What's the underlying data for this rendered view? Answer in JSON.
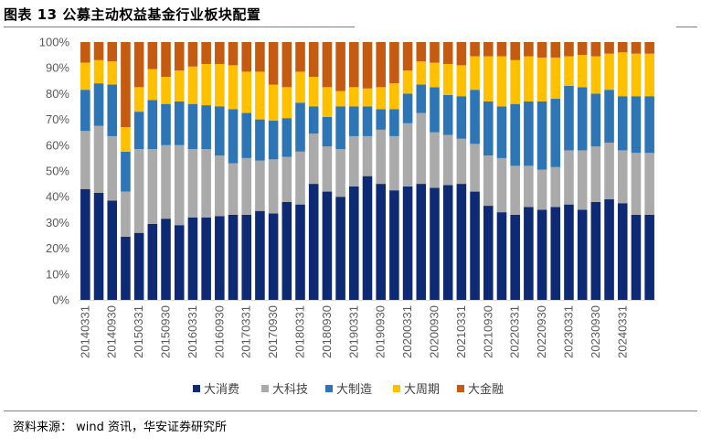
{
  "title": "图表 13 公募主动权益基金行业板块配置",
  "source": "资料来源： wind 资讯，华安证券研究所",
  "chart_data": {
    "type": "bar",
    "stacked": true,
    "title": "",
    "ylim": [
      0,
      100
    ],
    "yticks": [
      "0%",
      "10%",
      "20%",
      "30%",
      "40%",
      "50%",
      "60%",
      "70%",
      "80%",
      "90%",
      "100%"
    ],
    "legend_position": "bottom",
    "categories": [
      "20140331",
      "20140630",
      "20140930",
      "20141231",
      "20150331",
      "20150630",
      "20150930",
      "20151231",
      "20160331",
      "20160630",
      "20160930",
      "20161231",
      "20170331",
      "20170630",
      "20170930",
      "20171231",
      "20180331",
      "20180630",
      "20180930",
      "20181231",
      "20190331",
      "20190630",
      "20190930",
      "20191231",
      "20200331",
      "20200630",
      "20200930",
      "20201231",
      "20210331",
      "20210630",
      "20210930",
      "20211231",
      "20220331",
      "20220630",
      "20220930",
      "20221231",
      "20230331",
      "20230630",
      "20230930",
      "20231231",
      "20240331",
      "20240630",
      "20240930"
    ],
    "xtick_labels": [
      "20140331",
      "",
      "20140930",
      "",
      "20150331",
      "",
      "20150930",
      "",
      "20160331",
      "",
      "20160930",
      "",
      "20170331",
      "",
      "20170930",
      "",
      "20180331",
      "",
      "20180930",
      "",
      "20190331",
      "",
      "20190930",
      "",
      "20200331",
      "",
      "20200930",
      "",
      "20210331",
      "",
      "20210930",
      "",
      "20220331",
      "",
      "20220930",
      "",
      "20230331",
      "",
      "20230930",
      "",
      "20240331",
      "",
      ""
    ],
    "series": [
      {
        "name": "大消费",
        "color": "#0e2a74",
        "values": [
          43,
          41.5,
          38.5,
          24.5,
          26,
          29.5,
          31.5,
          29,
          32,
          32,
          32.5,
          33,
          33,
          34.5,
          33.5,
          38,
          37,
          45,
          42,
          40,
          44,
          48,
          45,
          42.5,
          44,
          45,
          43.5,
          44.5,
          45,
          42,
          36.5,
          34,
          33,
          36,
          35,
          36,
          37,
          35,
          38,
          39,
          37.5,
          33,
          33
        ]
      },
      {
        "name": "大科技",
        "color": "#aaaaaa",
        "values": [
          22.5,
          26,
          25,
          17.5,
          32.5,
          29,
          28.5,
          31,
          26.5,
          26.5,
          23.5,
          20,
          22,
          19.5,
          21,
          17.5,
          20.5,
          19.5,
          17.5,
          18.5,
          19.5,
          15.5,
          21,
          21,
          24.5,
          27.5,
          21.5,
          19.5,
          17.5,
          18.5,
          19.5,
          21,
          19,
          16,
          15.5,
          15.5,
          21,
          23,
          21.5,
          22,
          20.5,
          24,
          24
        ]
      },
      {
        "name": "大制造",
        "color": "#2e75b6",
        "values": [
          16,
          16.5,
          20,
          15.5,
          14.5,
          19,
          16,
          17,
          17.5,
          17,
          19,
          21,
          17.5,
          16,
          15,
          15,
          19,
          10.5,
          11.5,
          16.5,
          11.5,
          11.5,
          8,
          10.5,
          11.5,
          11,
          17.5,
          15.5,
          16.5,
          21,
          21,
          20,
          24,
          25,
          26.5,
          26.5,
          25,
          24.5,
          20.5,
          20.5,
          21,
          22,
          22
        ]
      },
      {
        "name": "大周期",
        "color": "#ffc000",
        "values": [
          10.5,
          9,
          9,
          9.5,
          9.5,
          12,
          10.5,
          12,
          14.5,
          16,
          16.5,
          17,
          16,
          18.5,
          14,
          12,
          12,
          11.5,
          11.5,
          6,
          7.5,
          7,
          8.5,
          10,
          9,
          9,
          9.5,
          12,
          12,
          13,
          17.5,
          19.5,
          17,
          17.5,
          17,
          16,
          11.5,
          12.5,
          14.5,
          14,
          17,
          16.5,
          16.5
        ]
      },
      {
        "name": "大金融",
        "color": "#c55a11",
        "values": [
          8,
          7,
          7.5,
          33,
          17.5,
          10.5,
          13.5,
          11,
          9.5,
          8.5,
          8.5,
          9,
          11.5,
          11.5,
          16.5,
          17.5,
          11.5,
          13.5,
          17.5,
          19,
          17.5,
          18,
          17.5,
          16,
          11,
          7.5,
          8,
          8.5,
          9,
          5.5,
          5.5,
          5.5,
          7,
          5.5,
          6,
          6,
          5.5,
          5,
          5.5,
          4.5,
          4,
          4.5,
          4.5
        ]
      }
    ]
  }
}
